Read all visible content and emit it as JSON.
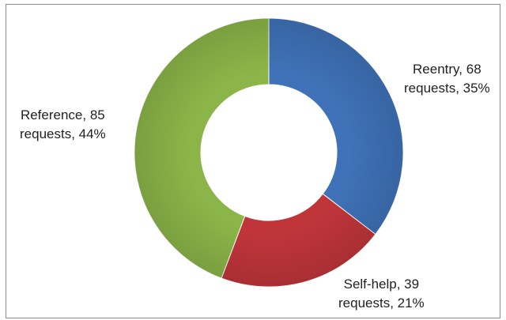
{
  "chart_data": {
    "type": "pie",
    "donut": true,
    "title": "",
    "slices": [
      {
        "label": "Reentry",
        "value": 68,
        "percent": 35,
        "color": "#3f72b8",
        "text": "Reentry, 68\nrequests, 35%"
      },
      {
        "label": "Self-help",
        "value": 39,
        "percent": 21,
        "color": "#c0353a",
        "text": "Self-help, 39\nrequests, 21%"
      },
      {
        "label": "Reference",
        "value": 85,
        "percent": 44,
        "color": "#8bb548",
        "text": "Reference, 85\nrequests, 44%"
      }
    ],
    "start_angle_deg": 0,
    "direction": "clockwise",
    "legend": "none"
  }
}
